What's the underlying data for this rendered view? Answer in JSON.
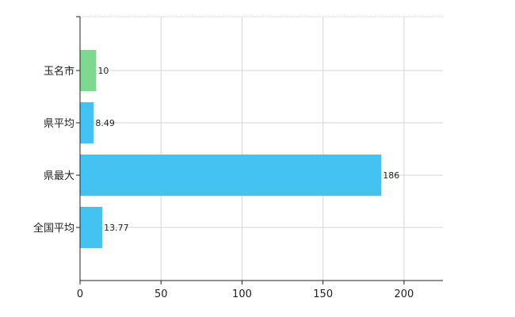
{
  "chart_data": {
    "type": "bar",
    "orientation": "horizontal",
    "categories": [
      "玉名市",
      "県平均",
      "県最大",
      "全国平均"
    ],
    "values": [
      10,
      8.49,
      186,
      13.77
    ],
    "value_labels": [
      "10",
      "8.49",
      "186",
      "13.77"
    ],
    "bar_colors": [
      "#7dd98f",
      "#44c3f2",
      "#44c3f2",
      "#44c3f2"
    ],
    "xlim": [
      0,
      224
    ],
    "xticks": [
      0,
      50,
      100,
      150,
      200
    ],
    "xtick_labels": [
      "0",
      "50",
      "100",
      "150",
      "200"
    ],
    "grid": true,
    "title": "",
    "xlabel": "",
    "ylabel": ""
  }
}
